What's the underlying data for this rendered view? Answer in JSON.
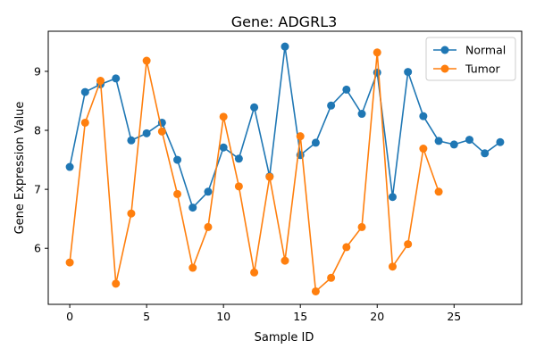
{
  "chart_data": {
    "type": "line",
    "title": "Gene: ADGRL3",
    "xlabel": "Sample ID",
    "ylabel": "Gene Expression Value",
    "xlim": [
      -1.4,
      29.4
    ],
    "ylim": [
      5.05,
      9.68
    ],
    "xticks": [
      0,
      5,
      10,
      15,
      20,
      25
    ],
    "yticks": [
      6,
      7,
      8,
      9
    ],
    "grid": false,
    "legend_position": "top-right",
    "series": [
      {
        "name": "Normal",
        "color": "#1f77b4",
        "x": [
          0,
          1,
          2,
          3,
          4,
          5,
          6,
          7,
          8,
          9,
          10,
          11,
          12,
          13,
          14,
          15,
          16,
          17,
          18,
          19,
          20,
          21,
          22,
          23,
          24,
          25,
          26,
          27,
          28
        ],
        "values": [
          7.38,
          8.65,
          8.78,
          8.88,
          7.83,
          7.95,
          8.13,
          7.5,
          6.69,
          6.96,
          7.71,
          7.52,
          8.39,
          7.22,
          9.42,
          7.58,
          7.79,
          8.42,
          8.69,
          8.28,
          8.98,
          6.87,
          8.99,
          8.24,
          7.82,
          7.76,
          7.84,
          7.61,
          7.8
        ]
      },
      {
        "name": "Tumor",
        "color": "#ff7f0e",
        "x": [
          0,
          1,
          2,
          3,
          4,
          5,
          6,
          7,
          8,
          9,
          10,
          11,
          12,
          13,
          14,
          15,
          16,
          17,
          18,
          19,
          20,
          21,
          22,
          23,
          24
        ],
        "values": [
          5.76,
          8.13,
          8.84,
          5.4,
          6.59,
          9.18,
          7.98,
          6.92,
          5.67,
          6.36,
          8.23,
          7.05,
          5.59,
          7.21,
          5.79,
          7.9,
          5.27,
          5.5,
          6.02,
          6.36,
          9.32,
          5.69,
          6.07,
          7.69,
          6.96
        ]
      }
    ]
  }
}
